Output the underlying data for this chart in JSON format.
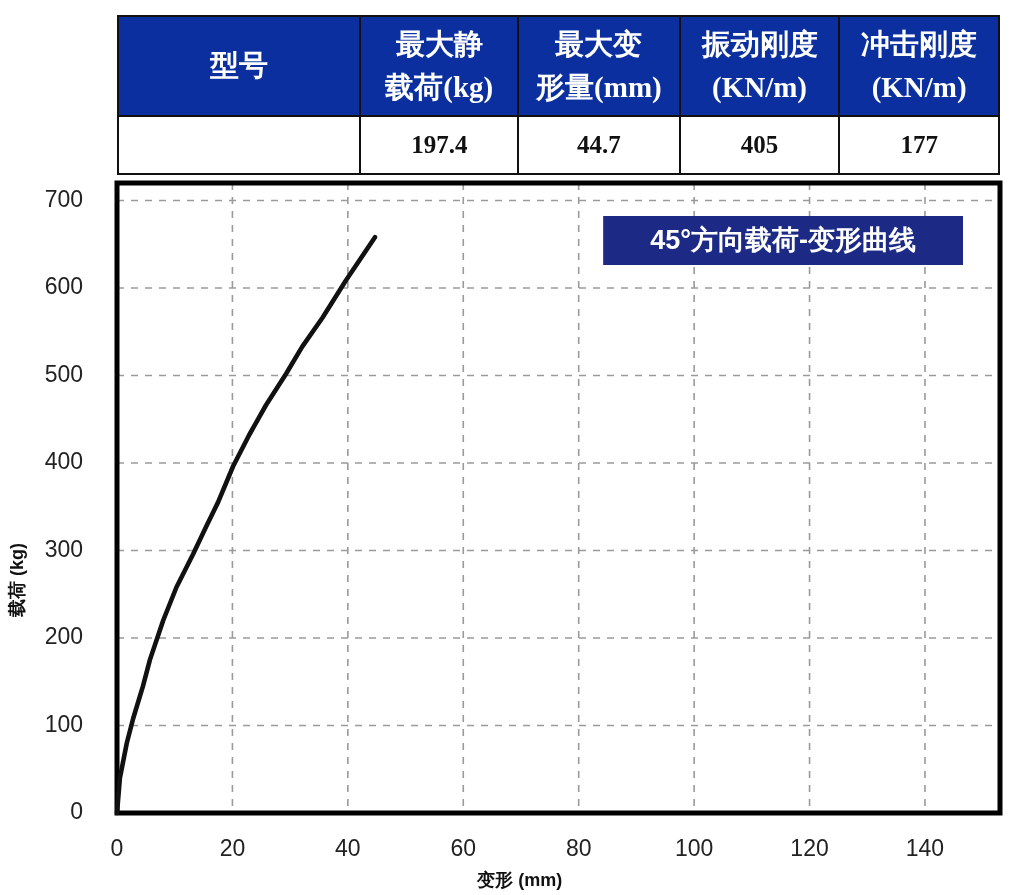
{
  "chart_data": [
    {
      "type": "other",
      "categories": [
        "型号",
        "最大静载荷(kg)",
        "最大变形量(mm)",
        "振动刚度\n(KN/m)",
        "冲击刚度\n(KN/m)"
      ],
      "values": [
        null,
        197.4,
        44.7,
        405,
        177
      ],
      "data_labels": true
    },
    {
      "type": "line",
      "title": "45°方向载荷-变形曲线",
      "xlabel": "变形 (mm)",
      "ylabel": "载荷 (kg)",
      "x": [
        0,
        0.5,
        1.7,
        2.8,
        4.5,
        5.7,
        8,
        10.3,
        13.2,
        15.5,
        17.5,
        20.1,
        22.9,
        25.8,
        29.3,
        32.1,
        35.6,
        39.6,
        44.7
      ],
      "values": [
        0,
        40,
        80,
        108,
        145,
        175,
        220,
        258,
        296,
        328,
        355,
        396,
        432,
        466,
        502,
        533,
        566,
        608,
        658
      ],
      "color": "#111111",
      "xlim": [
        0,
        153
      ],
      "ylim": [
        0,
        720
      ],
      "xticks": [
        0,
        20,
        40,
        60,
        80,
        100,
        120,
        140
      ],
      "yticks": [
        0,
        100,
        200,
        300,
        400,
        500,
        600,
        700
      ],
      "grid": true
    }
  ]
}
